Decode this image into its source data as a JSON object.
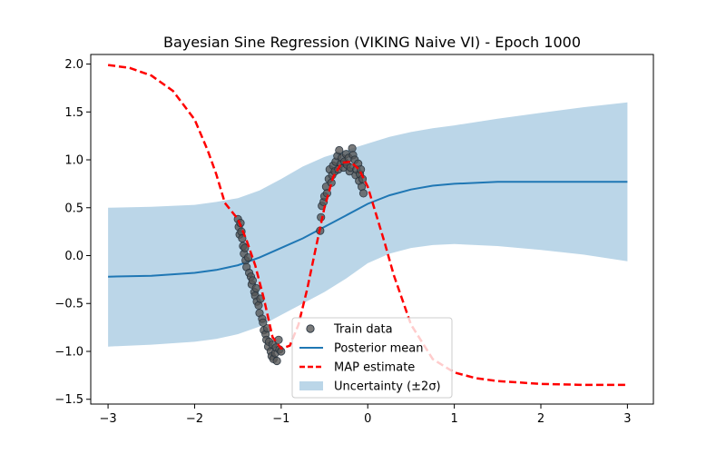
{
  "chart_data": {
    "type": "line",
    "title": "Bayesian Sine Regression (VIKING Naive VI) - Epoch 1000",
    "xlabel": "",
    "ylabel": "",
    "xlim": [
      -3.2,
      3.3
    ],
    "ylim": [
      -1.55,
      2.1
    ],
    "xticks": [
      -3,
      -2,
      -1,
      0,
      1,
      2,
      3
    ],
    "yticks": [
      -1.5,
      -1.0,
      -0.5,
      0.0,
      0.5,
      1.0,
      1.5,
      2.0
    ],
    "xtick_labels": [
      "−3",
      "−2",
      "−1",
      "0",
      "1",
      "2",
      "3"
    ],
    "ytick_labels": [
      "−1.5",
      "−1.0",
      "−0.5",
      "0.0",
      "0.5",
      "1.0",
      "1.5",
      "2.0"
    ],
    "grid": false,
    "legend_position": "bottom-center",
    "colors": {
      "train": "#555555",
      "train_edge": "#1f2d3a",
      "posterior": "#1f77b4",
      "map": "#ff0000",
      "band": "#1f77b4"
    },
    "series": [
      {
        "name": "Train data",
        "kind": "scatter",
        "points": [
          [
            -1.5,
            0.38
          ],
          [
            -1.49,
            0.3
          ],
          [
            -1.48,
            0.22
          ],
          [
            -1.47,
            0.34
          ],
          [
            -1.46,
            0.25
          ],
          [
            -1.45,
            0.18
          ],
          [
            -1.44,
            0.1
          ],
          [
            -1.43,
            0.02
          ],
          [
            -1.42,
            0.08
          ],
          [
            -1.41,
            -0.05
          ],
          [
            -1.4,
            -0.12
          ],
          [
            -1.38,
            -0.02
          ],
          [
            -1.37,
            -0.18
          ],
          [
            -1.35,
            -0.22
          ],
          [
            -1.34,
            -0.3
          ],
          [
            -1.33,
            -0.26
          ],
          [
            -1.31,
            -0.38
          ],
          [
            -1.3,
            -0.42
          ],
          [
            -1.29,
            -0.34
          ],
          [
            -1.28,
            -0.48
          ],
          [
            -1.26,
            -0.52
          ],
          [
            -1.25,
            -0.6
          ],
          [
            -1.24,
            -0.45
          ],
          [
            -1.22,
            -0.66
          ],
          [
            -1.21,
            -0.7
          ],
          [
            -1.2,
            -0.78
          ],
          [
            -1.18,
            -0.82
          ],
          [
            -1.17,
            -0.88
          ],
          [
            -1.16,
            -0.76
          ],
          [
            -1.15,
            -0.95
          ],
          [
            -1.14,
            -0.9
          ],
          [
            -1.12,
            -1.0
          ],
          [
            -1.11,
            -1.05
          ],
          [
            -1.1,
            -0.93
          ],
          [
            -1.09,
            -1.08
          ],
          [
            -1.07,
            -1.02
          ],
          [
            -1.06,
            -0.96
          ],
          [
            -1.05,
            -1.1
          ],
          [
            -1.03,
            -0.88
          ],
          [
            -1.02,
            -0.98
          ],
          [
            -1.0,
            -1.0
          ],
          [
            -0.55,
            0.26
          ],
          [
            -0.54,
            0.4
          ],
          [
            -0.53,
            0.52
          ],
          [
            -0.51,
            0.56
          ],
          [
            -0.5,
            0.62
          ],
          [
            -0.48,
            0.72
          ],
          [
            -0.47,
            0.65
          ],
          [
            -0.45,
            0.8
          ],
          [
            -0.44,
            0.9
          ],
          [
            -0.42,
            0.76
          ],
          [
            -0.41,
            0.84
          ],
          [
            -0.4,
            0.94
          ],
          [
            -0.38,
            0.88
          ],
          [
            -0.37,
            0.98
          ],
          [
            -0.35,
            1.04
          ],
          [
            -0.34,
            0.9
          ],
          [
            -0.33,
            1.1
          ],
          [
            -0.31,
            0.96
          ],
          [
            -0.3,
            1.02
          ],
          [
            -0.28,
            0.92
          ],
          [
            -0.27,
            0.98
          ],
          [
            -0.25,
            1.06
          ],
          [
            -0.24,
            0.95
          ],
          [
            -0.22,
            1.02
          ],
          [
            -0.21,
            0.88
          ],
          [
            -0.2,
            0.92
          ],
          [
            -0.18,
            1.12
          ],
          [
            -0.17,
            1.05
          ],
          [
            -0.15,
            1.0
          ],
          [
            -0.14,
            0.84
          ],
          [
            -0.13,
            0.9
          ],
          [
            -0.11,
            0.96
          ],
          [
            -0.1,
            0.78
          ],
          [
            -0.09,
            0.85
          ],
          [
            -0.08,
            0.9
          ],
          [
            -0.07,
            0.72
          ],
          [
            -0.06,
            0.8
          ],
          [
            -0.05,
            0.65
          ]
        ]
      },
      {
        "name": "Posterior mean",
        "kind": "line",
        "x": [
          -3,
          -2.5,
          -2,
          -1.75,
          -1.5,
          -1.25,
          -1,
          -0.75,
          -0.5,
          -0.25,
          0,
          0.25,
          0.5,
          0.75,
          1,
          1.5,
          2,
          2.5,
          3
        ],
        "y": [
          -0.22,
          -0.21,
          -0.18,
          -0.15,
          -0.1,
          -0.02,
          0.08,
          0.18,
          0.3,
          0.42,
          0.54,
          0.63,
          0.69,
          0.73,
          0.75,
          0.77,
          0.77,
          0.77,
          0.77
        ]
      },
      {
        "name": "MAP estimate",
        "kind": "line",
        "x": [
          -3,
          -2.75,
          -2.5,
          -2.25,
          -2,
          -1.85,
          -1.75,
          -1.65,
          -1.5,
          -1.4,
          -1.3,
          -1.2,
          -1.1,
          -1,
          -0.9,
          -0.8,
          -0.7,
          -0.6,
          -0.5,
          -0.4,
          -0.3,
          -0.2,
          -0.1,
          0,
          0.1,
          0.2,
          0.3,
          0.5,
          0.75,
          1,
          1.25,
          1.5,
          2,
          2.5,
          3
        ],
        "y": [
          1.99,
          1.96,
          1.88,
          1.72,
          1.42,
          1.1,
          0.85,
          0.55,
          0.38,
          0.16,
          -0.1,
          -0.45,
          -0.85,
          -0.97,
          -0.94,
          -0.72,
          -0.35,
          0.08,
          0.5,
          0.82,
          0.97,
          0.98,
          0.9,
          0.72,
          0.42,
          0.12,
          -0.2,
          -0.72,
          -1.08,
          -1.22,
          -1.28,
          -1.31,
          -1.34,
          -1.35,
          -1.35
        ]
      },
      {
        "name": "Uncertainty (±2σ)",
        "kind": "band",
        "x": [
          -3,
          -2.5,
          -2,
          -1.75,
          -1.5,
          -1.25,
          -1,
          -0.75,
          -0.5,
          -0.25,
          0,
          0.25,
          0.5,
          0.75,
          1,
          1.5,
          2,
          2.5,
          3
        ],
        "upper": [
          0.5,
          0.51,
          0.53,
          0.56,
          0.6,
          0.68,
          0.8,
          0.93,
          1.03,
          1.1,
          1.17,
          1.24,
          1.29,
          1.33,
          1.36,
          1.43,
          1.49,
          1.55,
          1.6
        ],
        "lower": [
          -0.95,
          -0.93,
          -0.9,
          -0.87,
          -0.82,
          -0.74,
          -0.62,
          -0.5,
          -0.38,
          -0.24,
          -0.08,
          0.02,
          0.08,
          0.11,
          0.12,
          0.1,
          0.06,
          0.01,
          -0.06
        ]
      }
    ]
  }
}
